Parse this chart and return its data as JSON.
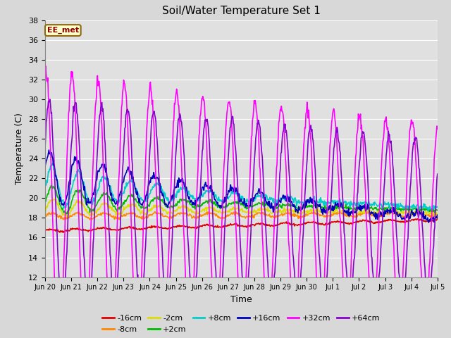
{
  "title": "Soil/Water Temperature Set 1",
  "xlabel": "Time",
  "ylabel": "Temperature (C)",
  "ylim": [
    12,
    38
  ],
  "yticks": [
    12,
    14,
    16,
    18,
    20,
    22,
    24,
    26,
    28,
    30,
    32,
    34,
    36,
    38
  ],
  "annotation": "EE_met",
  "fig_facecolor": "#d8d8d8",
  "ax_facecolor": "#e0e0e0",
  "series_order": [
    "-16cm",
    "-8cm",
    "-2cm",
    "+2cm",
    "+8cm",
    "+16cm",
    "+32cm",
    "+64cm"
  ],
  "series": {
    "-16cm": {
      "color": "#dd0000",
      "lw": 1.2
    },
    "-8cm": {
      "color": "#ff8800",
      "lw": 1.2
    },
    "-2cm": {
      "color": "#dddd00",
      "lw": 1.2
    },
    "+2cm": {
      "color": "#00bb00",
      "lw": 1.2
    },
    "+8cm": {
      "color": "#00cccc",
      "lw": 1.2
    },
    "+16cm": {
      "color": "#0000bb",
      "lw": 1.2
    },
    "+32cm": {
      "color": "#ff00ff",
      "lw": 1.2
    },
    "+64cm": {
      "color": "#8800cc",
      "lw": 1.2
    }
  },
  "xtick_labels": [
    "Jun 20",
    "Jun 21",
    "Jun 22",
    "Jun 23",
    "Jun 24",
    "Jun 25",
    "Jun 26",
    "Jun 27",
    "Jun 28",
    "Jun 29",
    "Jun 30",
    "Jul 1",
    "Jul 2",
    "Jul 3",
    "Jul 4",
    "Jul 5"
  ],
  "n_points": 720,
  "n_days": 15
}
